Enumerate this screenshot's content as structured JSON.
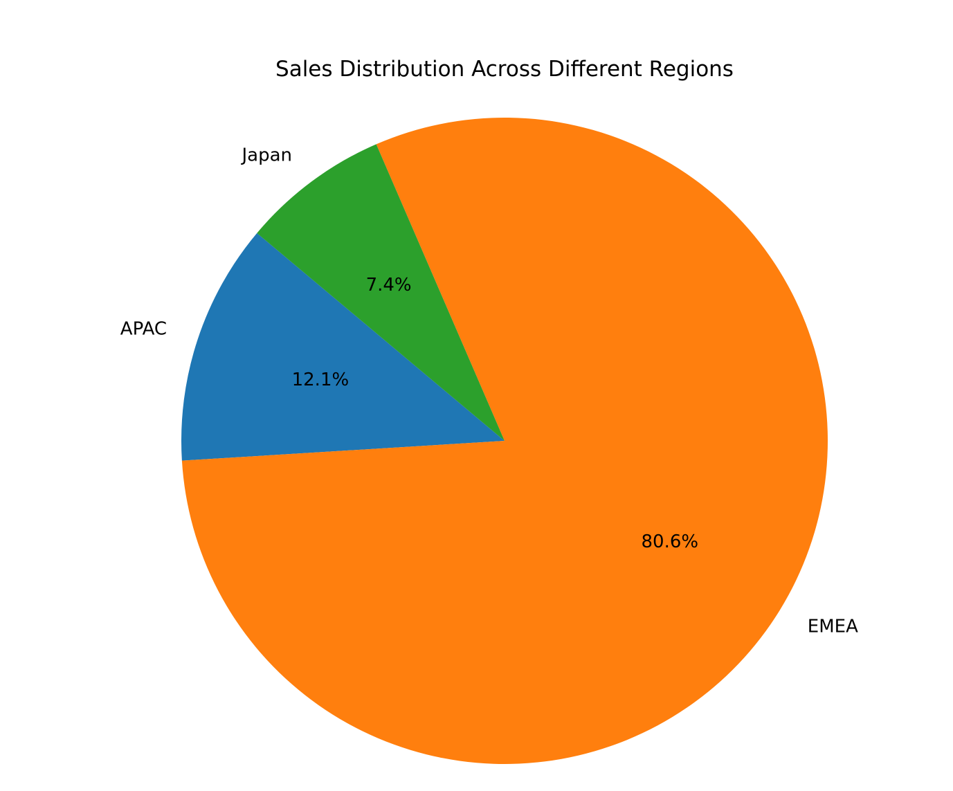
{
  "chart_data": {
    "type": "pie",
    "title": "Sales Distribution Across Different Regions",
    "labels": [
      "APAC",
      "EMEA",
      "Japan"
    ],
    "values": [
      12.1,
      80.6,
      7.4
    ],
    "value_labels": [
      "12.1%",
      "80.6%",
      "7.4%"
    ],
    "colors": [
      "#1f77b4",
      "#ff7f0e",
      "#2ca02c"
    ],
    "start_angle_deg": 140,
    "direction": "counterclockwise",
    "legend": "none"
  }
}
